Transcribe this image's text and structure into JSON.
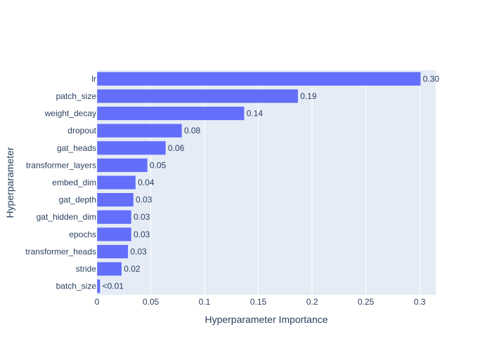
{
  "chart_data": {
    "type": "bar",
    "orientation": "horizontal",
    "title": "",
    "xlabel": "Hyperparameter Importance",
    "ylabel": "Hyperparameter",
    "xlim": [
      0,
      0.315
    ],
    "x_ticks": [
      0,
      0.05,
      0.1,
      0.15,
      0.2,
      0.25,
      0.3
    ],
    "x_tick_labels": [
      "0",
      "0.05",
      "0.1",
      "0.15",
      "0.2",
      "0.25",
      "0.3"
    ],
    "grid": true,
    "categories": [
      "lr",
      "patch_size",
      "weight_decay",
      "dropout",
      "gat_heads",
      "transformer_layers",
      "embed_dim",
      "gat_depth",
      "gat_hidden_dim",
      "epochs",
      "transformer_heads",
      "stride",
      "batch_size"
    ],
    "values": [
      0.301,
      0.187,
      0.137,
      0.079,
      0.064,
      0.047,
      0.036,
      0.034,
      0.032,
      0.032,
      0.029,
      0.023,
      0.003
    ],
    "value_labels": [
      "0.30",
      "0.19",
      "0.14",
      "0.08",
      "0.06",
      "0.05",
      "0.04",
      "0.03",
      "0.03",
      "0.03",
      "0.03",
      "0.02",
      "<0.01"
    ],
    "colors": {
      "bar": "#636efa",
      "bar_outline": "#e5ecf6",
      "plot_background": "#e5ecf6",
      "grid": "#ffffff",
      "text": "#2a3f5f"
    }
  }
}
